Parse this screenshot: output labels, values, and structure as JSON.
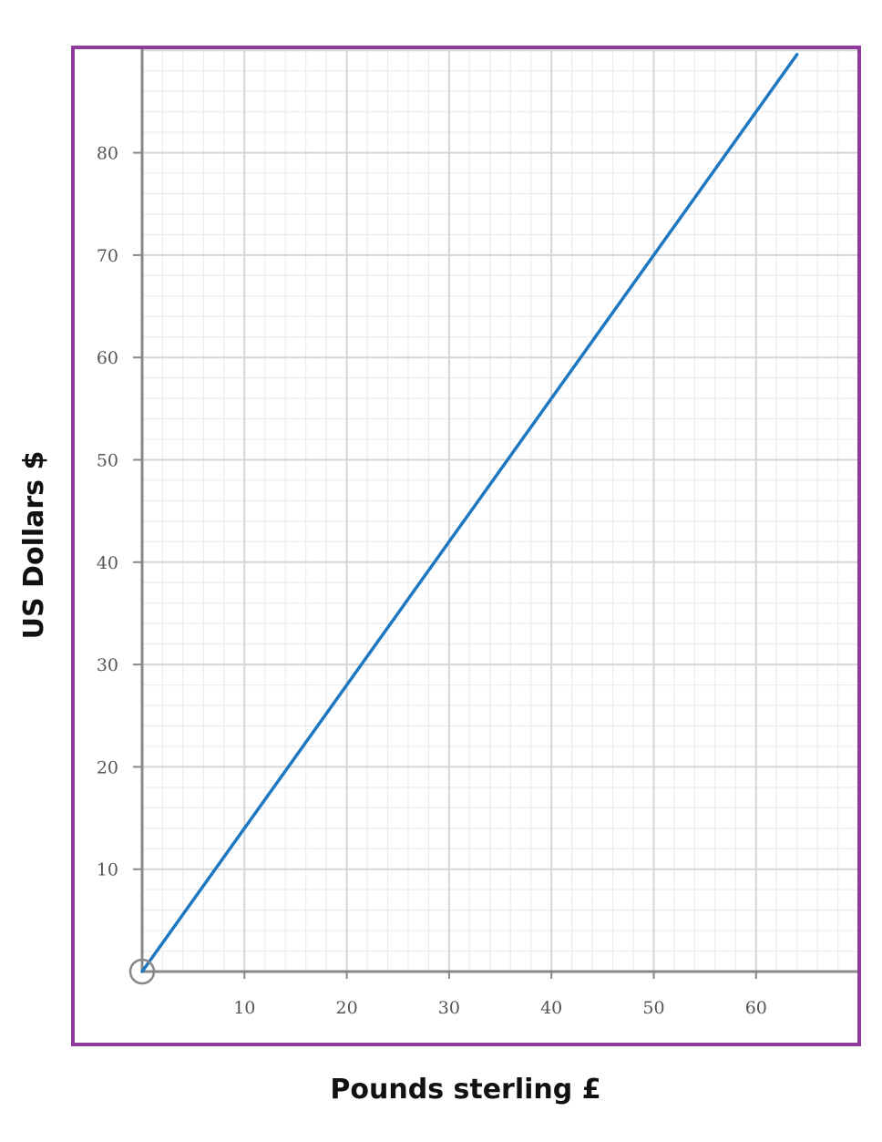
{
  "chart_data": {
    "type": "line",
    "title": "",
    "xlabel": "Pounds sterling £",
    "ylabel": "US Dollars $",
    "xlim": [
      0,
      70
    ],
    "ylim": [
      0,
      90
    ],
    "x_ticks": [
      10,
      20,
      30,
      40,
      50,
      60
    ],
    "y_ticks": [
      10,
      20,
      30,
      40,
      50,
      60,
      70,
      80
    ],
    "x_tick_labels": [
      "10",
      "20",
      "30",
      "40",
      "50",
      "60"
    ],
    "y_tick_labels": [
      "10",
      "20",
      "30",
      "40",
      "50",
      "60",
      "70",
      "80"
    ],
    "grid": true,
    "series": [
      {
        "x": [
          0,
          64
        ],
        "y": [
          0,
          89.6
        ]
      }
    ],
    "colors": {
      "frame": "#8e3b9c",
      "line": "#1f77c0",
      "axis": "#888888",
      "grid_major": "#d6d6d6",
      "grid_minor": "#ececec"
    }
  }
}
